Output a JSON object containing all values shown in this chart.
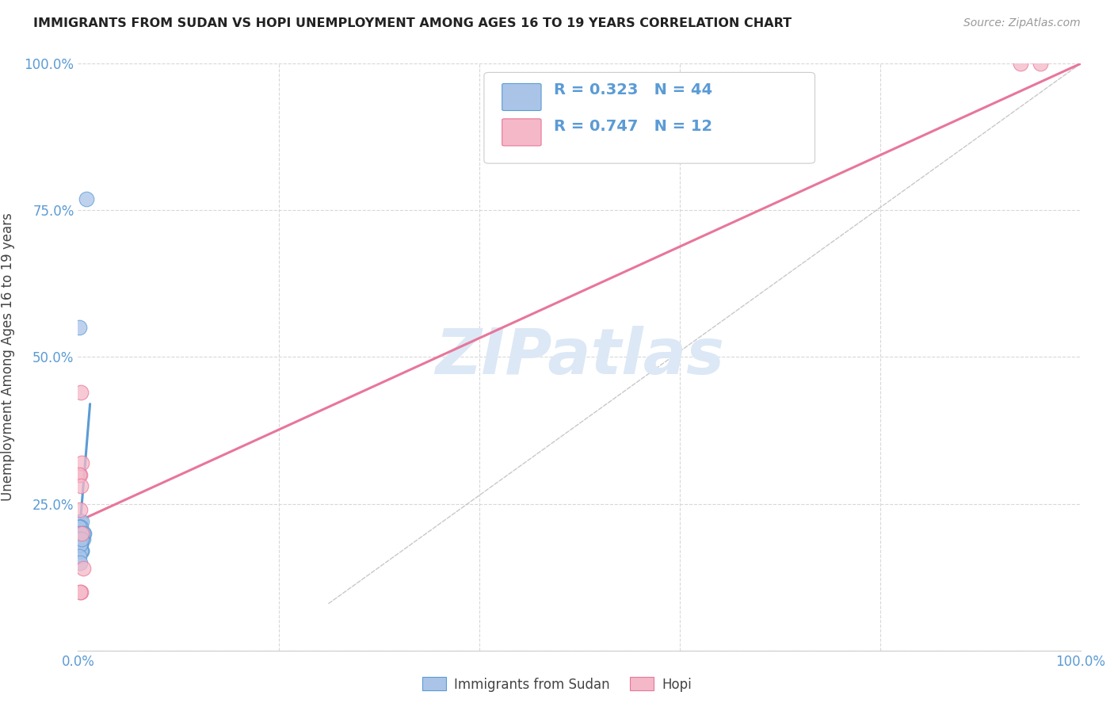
{
  "title": "IMMIGRANTS FROM SUDAN VS HOPI UNEMPLOYMENT AMONG AGES 16 TO 19 YEARS CORRELATION CHART",
  "source": "Source: ZipAtlas.com",
  "ylabel": "Unemployment Among Ages 16 to 19 years",
  "xlim": [
    0,
    1.0
  ],
  "ylim": [
    0,
    1.0
  ],
  "xticks": [
    0.0,
    0.2,
    0.4,
    0.6,
    0.8,
    1.0
  ],
  "xticklabels": [
    "0.0%",
    "",
    "",
    "",
    "",
    "100.0%"
  ],
  "yticks": [
    0.0,
    0.25,
    0.5,
    0.75,
    1.0
  ],
  "yticklabels": [
    "",
    "25.0%",
    "50.0%",
    "75.0%",
    "100.0%"
  ],
  "background_color": "#ffffff",
  "grid_color": "#d8d8d8",
  "sudan_color": "#aac4e8",
  "hopi_color": "#f5b8c8",
  "sudan_edge_color": "#5b9bd5",
  "hopi_edge_color": "#e8769a",
  "sudan_R": 0.323,
  "sudan_N": 44,
  "hopi_R": 0.747,
  "hopi_N": 12,
  "legend_label_sudan": "Immigrants from Sudan",
  "legend_label_hopi": "Hopi",
  "sudan_scatter_x": [
    0.002,
    0.003,
    0.001,
    0.004,
    0.005,
    0.002,
    0.003,
    0.001,
    0.002,
    0.004,
    0.003,
    0.002,
    0.001,
    0.003,
    0.002,
    0.004,
    0.003,
    0.005,
    0.002,
    0.001,
    0.006,
    0.003,
    0.002,
    0.001,
    0.004,
    0.003,
    0.002,
    0.001,
    0.005,
    0.002,
    0.003,
    0.001,
    0.002,
    0.004,
    0.003,
    0.002,
    0.001,
    0.003,
    0.002,
    0.004,
    0.001,
    0.002,
    0.001,
    0.008
  ],
  "sudan_scatter_y": [
    0.22,
    0.2,
    0.18,
    0.22,
    0.19,
    0.21,
    0.2,
    0.19,
    0.21,
    0.17,
    0.19,
    0.2,
    0.18,
    0.21,
    0.2,
    0.19,
    0.18,
    0.2,
    0.19,
    0.21,
    0.2,
    0.19,
    0.18,
    0.2,
    0.19,
    0.17,
    0.18,
    0.19,
    0.2,
    0.18,
    0.17,
    0.19,
    0.18,
    0.17,
    0.19,
    0.18,
    0.19,
    0.17,
    0.18,
    0.19,
    0.16,
    0.15,
    0.55,
    0.77
  ],
  "hopi_scatter_x": [
    0.003,
    0.002,
    0.004,
    0.001,
    0.003,
    0.002,
    0.004,
    0.005,
    0.003,
    0.002,
    0.94,
    0.96
  ],
  "hopi_scatter_y": [
    0.44,
    0.3,
    0.32,
    0.3,
    0.28,
    0.24,
    0.2,
    0.14,
    0.1,
    0.1,
    1.0,
    1.0
  ],
  "sudan_line_x": [
    0.0,
    0.012
  ],
  "sudan_line_y": [
    0.17,
    0.42
  ],
  "hopi_line_x": [
    0.0,
    1.0
  ],
  "hopi_line_y": [
    0.22,
    1.0
  ],
  "dashed_line_x": [
    0.25,
    1.0
  ],
  "dashed_line_y": [
    0.08,
    1.0
  ],
  "title_color": "#222222",
  "axis_label_color": "#444444",
  "tick_label_color": "#5b9bd5",
  "legend_color": "#5b9bd5",
  "watermark_text": "ZIPatlas",
  "watermark_color": "#dce8f5",
  "watermark_fontsize": 58
}
